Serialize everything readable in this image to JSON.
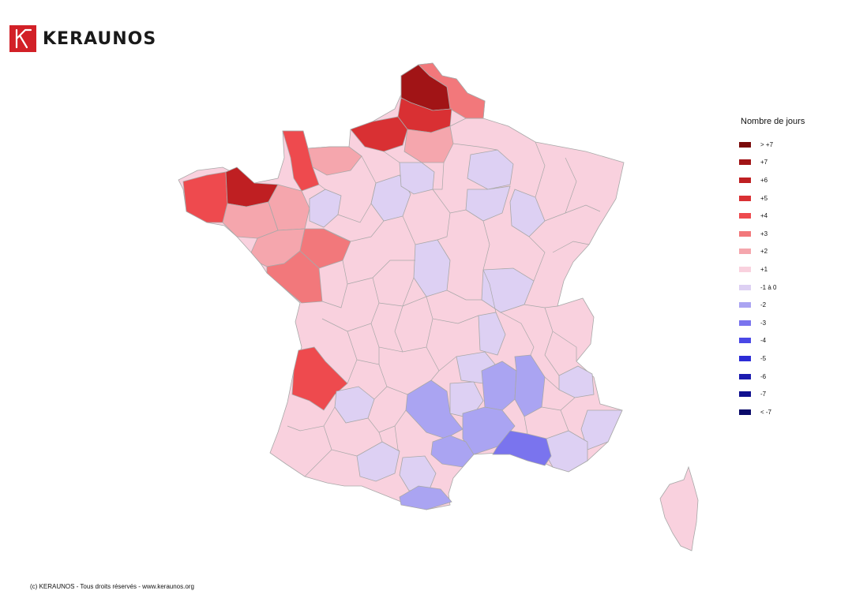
{
  "brand": {
    "name": "KERAUNOS",
    "color": "#d22027"
  },
  "legend": {
    "title": "Nombre de jours",
    "items": [
      {
        "label": "> +7",
        "color": "#7a0a0a"
      },
      {
        "label": "+7",
        "color": "#a11416"
      },
      {
        "label": "+6",
        "color": "#bf1f22"
      },
      {
        "label": "+5",
        "color": "#d93033"
      },
      {
        "label": "+4",
        "color": "#ee4a4e"
      },
      {
        "label": "+3",
        "color": "#f2787b"
      },
      {
        "label": "+2",
        "color": "#f5a6ad"
      },
      {
        "label": "+1",
        "color": "#f9d1de"
      },
      {
        "label": "-1 à 0",
        "color": "#ddd0f3"
      },
      {
        "label": "-2",
        "color": "#aaa4f2"
      },
      {
        "label": "-3",
        "color": "#7a74ee"
      },
      {
        "label": "-4",
        "color": "#4a48e6"
      },
      {
        "label": "-5",
        "color": "#2c2cd6"
      },
      {
        "label": "-6",
        "color": "#1c1cb0"
      },
      {
        "label": "-7",
        "color": "#10108f"
      },
      {
        "label": "< -7",
        "color": "#0a0a6a"
      }
    ]
  },
  "map": {
    "border_color": "#a8a8a8"
  },
  "footer": "(c) KERAUNOS - Tous droits réservés - www.keraunos.org"
}
